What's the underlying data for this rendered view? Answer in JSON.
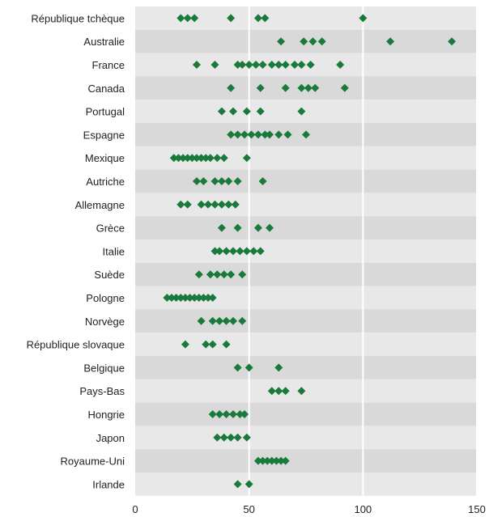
{
  "chart_data": {
    "type": "scatter",
    "orientation": "horizontal",
    "grid": "vertical",
    "marker": "diamond",
    "marker_color": "#1a7a3c",
    "band_colors": [
      "#e8e8e8",
      "#d9d9d9"
    ],
    "xlim": [
      0,
      150
    ],
    "xticks": [
      0,
      50,
      100,
      150
    ],
    "tick_labels": [
      "0",
      "50",
      "100",
      "150"
    ],
    "categories": [
      "République tchèque",
      "Australie",
      "France",
      "Canada",
      "Portugal",
      "Espagne",
      "Mexique",
      "Autriche",
      "Allemagne",
      "Grèce",
      "Italie",
      "Suède",
      "Pologne",
      "Norvège",
      "République slovaque",
      "Belgique",
      "Pays-Bas",
      "Hongrie",
      "Japon",
      "Royaume-Uni",
      "Irlande"
    ],
    "points": [
      [
        20,
        23,
        26,
        42,
        54,
        57,
        100
      ],
      [
        64,
        74,
        78,
        82,
        112,
        139
      ],
      [
        27,
        35,
        45,
        47,
        50,
        53,
        56,
        60,
        63,
        66,
        70,
        73,
        77,
        90
      ],
      [
        42,
        55,
        66,
        73,
        76,
        79,
        92
      ],
      [
        38,
        43,
        49,
        55,
        73
      ],
      [
        42,
        45,
        48,
        51,
        54,
        57,
        59,
        63,
        67,
        75
      ],
      [
        17,
        19,
        21,
        23,
        25,
        27,
        29,
        31,
        33,
        36,
        39,
        49
      ],
      [
        27,
        30,
        35,
        38,
        41,
        45,
        56
      ],
      [
        20,
        23,
        29,
        32,
        35,
        38,
        41,
        44
      ],
      [
        38,
        45,
        54,
        59
      ],
      [
        35,
        37,
        40,
        43,
        46,
        49,
        52,
        55
      ],
      [
        28,
        33,
        36,
        39,
        42,
        47
      ],
      [
        14,
        16,
        18,
        20,
        22,
        24,
        26,
        28,
        30,
        32,
        34
      ],
      [
        29,
        34,
        37,
        40,
        43,
        47
      ],
      [
        22,
        31,
        34,
        40
      ],
      [
        45,
        50,
        63
      ],
      [
        60,
        63,
        66,
        73
      ],
      [
        34,
        37,
        40,
        43,
        46,
        48
      ],
      [
        36,
        39,
        42,
        45,
        49
      ],
      [
        54,
        56,
        58,
        60,
        62,
        64,
        66
      ],
      [
        45,
        50
      ]
    ]
  }
}
